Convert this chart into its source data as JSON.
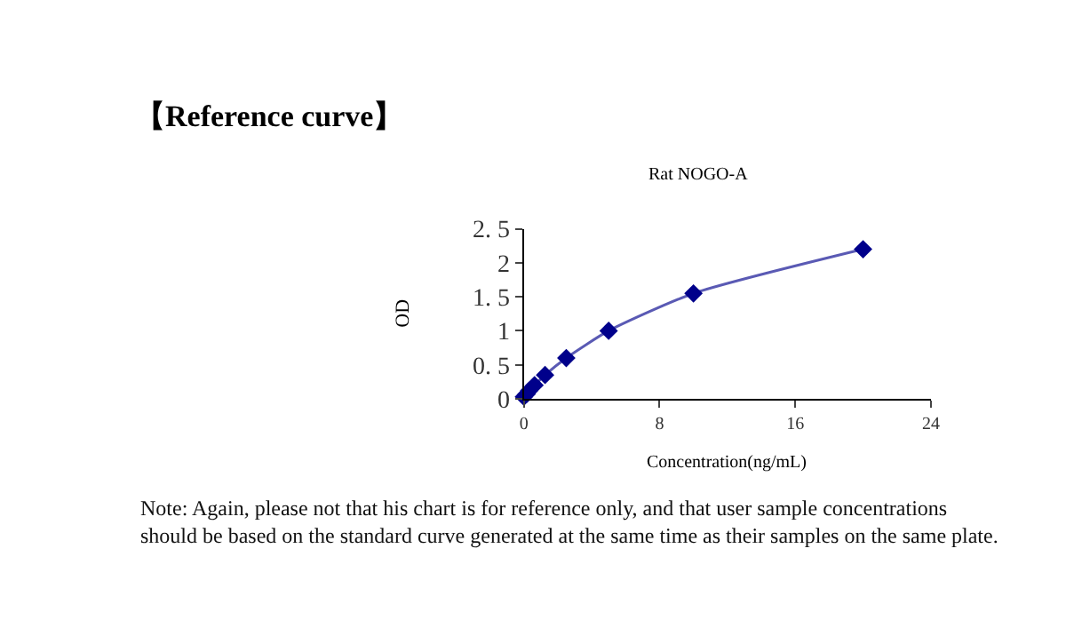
{
  "chart_data": {
    "type": "line",
    "title": "【Reference curve】",
    "subtitle": "Rat NOGO-A",
    "xlabel": "Concentration(ng/mL)",
    "ylabel": "OD",
    "x": [
      0,
      0.16,
      0.31,
      0.63,
      1.25,
      2.5,
      5,
      10,
      20
    ],
    "series": [
      {
        "color": "#00008b",
        "values": [
          0.03,
          0.07,
          0.12,
          0.2,
          0.35,
          0.6,
          1.0,
          1.55,
          2.2
        ]
      }
    ],
    "xlim": [
      0,
      24
    ],
    "xticks": [
      0,
      8,
      16,
      24
    ],
    "ylim": [
      0,
      2.5
    ],
    "yticks": [
      0,
      {
        "value": 0.5,
        "label": "0. 5"
      },
      1,
      {
        "value": 1.5,
        "label": "1. 5"
      },
      2,
      {
        "value": 2.5,
        "label": "2. 5"
      }
    ],
    "marker": "diamond",
    "line_style": "solid",
    "legend": false,
    "annotations": [
      "Note: Again, please not that his chart is for reference only, and that user sample concentrations should be based on the standard curve generated at the same time as their samples on the same plate."
    ]
  }
}
